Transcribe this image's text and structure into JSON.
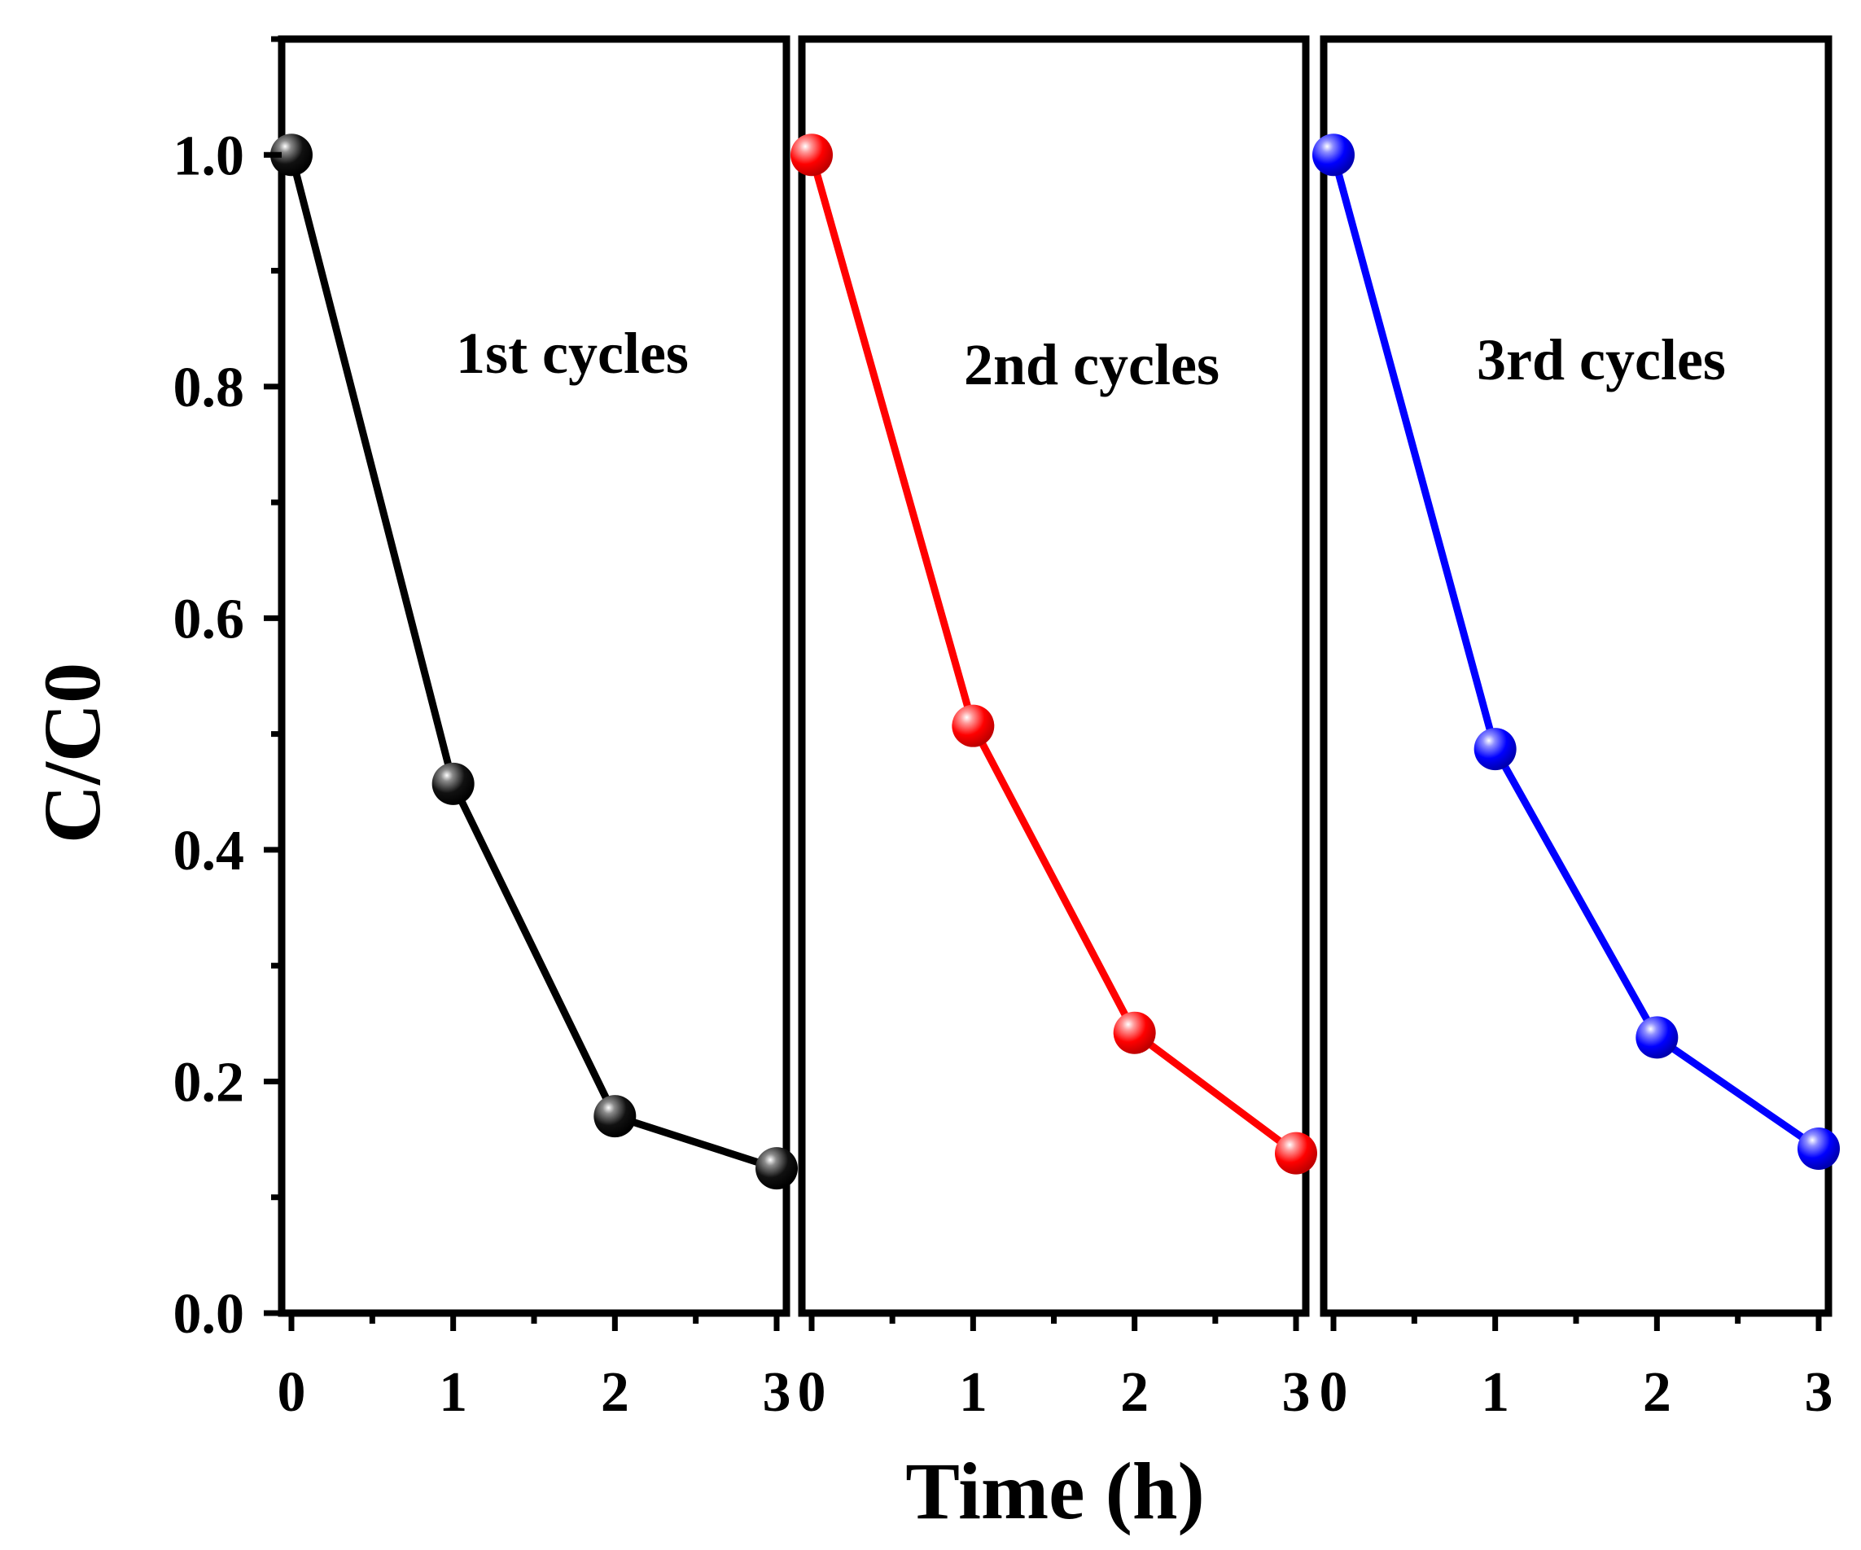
{
  "chart_data": {
    "type": "line",
    "ylabel": "C/C0",
    "xlabel": "Time (h)",
    "ylim": [
      0,
      1.1
    ],
    "yticks": [
      "0.0",
      "0.2",
      "0.4",
      "0.6",
      "0.8",
      "1.0"
    ],
    "xlim": [
      0,
      3
    ],
    "xticks": [
      "0",
      "1",
      "2",
      "3"
    ],
    "panels": [
      {
        "name": "1st cycles",
        "label": "1st cycles",
        "color": "#000000",
        "x": [
          0,
          1,
          2,
          3
        ],
        "values": [
          1.0,
          0.457,
          0.17,
          0.125
        ]
      },
      {
        "name": "2nd cycles",
        "label": "2nd cycles",
        "color": "#ff0000",
        "x": [
          0,
          1,
          2,
          3
        ],
        "values": [
          1.0,
          0.507,
          0.242,
          0.138
        ]
      },
      {
        "name": "3rd cycles",
        "label": "3rd cycles",
        "color": "#0000ff",
        "x": [
          0,
          1,
          2,
          3
        ],
        "values": [
          1.0,
          0.487,
          0.238,
          0.142
        ]
      }
    ]
  }
}
